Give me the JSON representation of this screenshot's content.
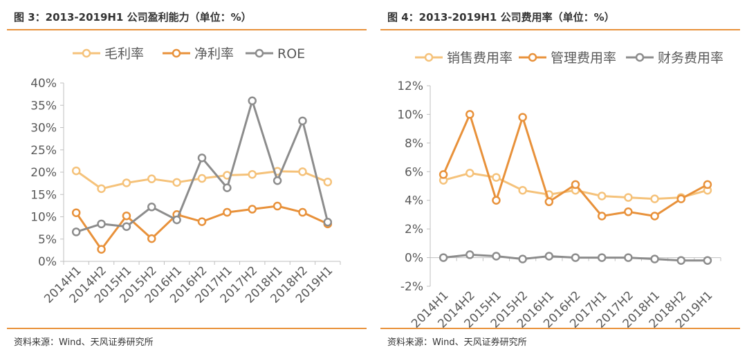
{
  "colors": {
    "accent_rule": "#e8913a",
    "series1": "#f5c27a",
    "series2": "#e8913a",
    "series3": "#8c8c8c",
    "axis": "#bfbfbf",
    "text": "#595959"
  },
  "charts": [
    {
      "title": "图 3：2013-2019H1 公司盈利能力（单位：%）",
      "source": "资料来源：Wind、天风证券研究所"
    },
    {
      "title": "图 4：2013-2019H1 公司费用率（单位：%）",
      "source": "资料来源：Wind、天风证券研究所"
    }
  ],
  "chart_data": [
    {
      "type": "line",
      "title": "",
      "categories": [
        "2014H1",
        "2014H2",
        "2015H1",
        "2015H2",
        "2016H1",
        "2016H2",
        "2017H1",
        "2017H2",
        "2018H1",
        "2018H2",
        "2019H1"
      ],
      "series": [
        {
          "name": "毛利率",
          "values": [
            20.3,
            16.3,
            17.6,
            18.5,
            17.7,
            18.6,
            19.3,
            19.5,
            20.2,
            20.1,
            17.8
          ]
        },
        {
          "name": "净利率",
          "values": [
            10.9,
            2.7,
            10.2,
            5.1,
            10.5,
            8.9,
            11.0,
            11.7,
            12.4,
            11.0,
            8.4
          ]
        },
        {
          "name": "ROE",
          "values": [
            6.6,
            8.4,
            7.8,
            12.2,
            9.3,
            23.2,
            16.5,
            36.0,
            18.1,
            31.5,
            8.8
          ]
        }
      ],
      "ylim": [
        0,
        40
      ],
      "yticks": [
        "0%",
        "5%",
        "10%",
        "15%",
        "20%",
        "25%",
        "30%",
        "35%",
        "40%"
      ],
      "legend": "top",
      "grid": false
    },
    {
      "type": "line",
      "title": "",
      "categories": [
        "2014H1",
        "2014H2",
        "2015H1",
        "2015H2",
        "2016H1",
        "2016H2",
        "2017H1",
        "2017H2",
        "2018H1",
        "2018H2",
        "2019H1"
      ],
      "series": [
        {
          "name": "销售费用率",
          "values": [
            5.4,
            5.9,
            5.6,
            4.7,
            4.4,
            4.7,
            4.3,
            4.2,
            4.1,
            4.2,
            4.7
          ]
        },
        {
          "name": "管理费用率",
          "values": [
            5.8,
            10.0,
            4.0,
            9.8,
            3.9,
            5.1,
            2.9,
            3.2,
            2.9,
            4.1,
            5.1
          ]
        },
        {
          "name": "财务费用率",
          "values": [
            0.0,
            0.2,
            0.1,
            -0.1,
            0.1,
            0.0,
            0.0,
            0.0,
            -0.1,
            -0.2,
            -0.2
          ]
        }
      ],
      "ylim": [
        -2,
        12
      ],
      "yticks": [
        "-2%",
        "0%",
        "2%",
        "4%",
        "6%",
        "8%",
        "10%",
        "12%"
      ],
      "legend": "top",
      "grid": false
    }
  ]
}
